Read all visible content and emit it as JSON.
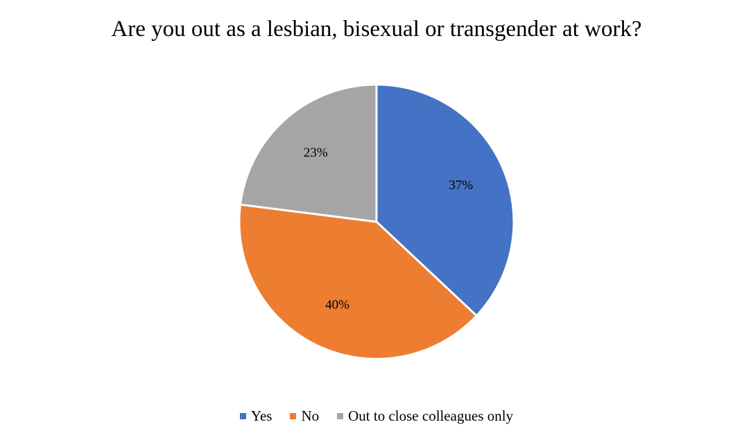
{
  "chart_data": {
    "type": "pie",
    "title": "Are you out as a lesbian, bisexual or transgender at work?",
    "categories": [
      "Yes",
      "No",
      "Out to close colleagues only"
    ],
    "values": [
      37,
      40,
      23
    ],
    "data_labels": [
      "37%",
      "40%",
      "23%"
    ],
    "colors": [
      "#4472C4",
      "#ED7D31",
      "#A5A5A5"
    ],
    "legend_position": "bottom",
    "start_angle": "top, clockwise"
  }
}
